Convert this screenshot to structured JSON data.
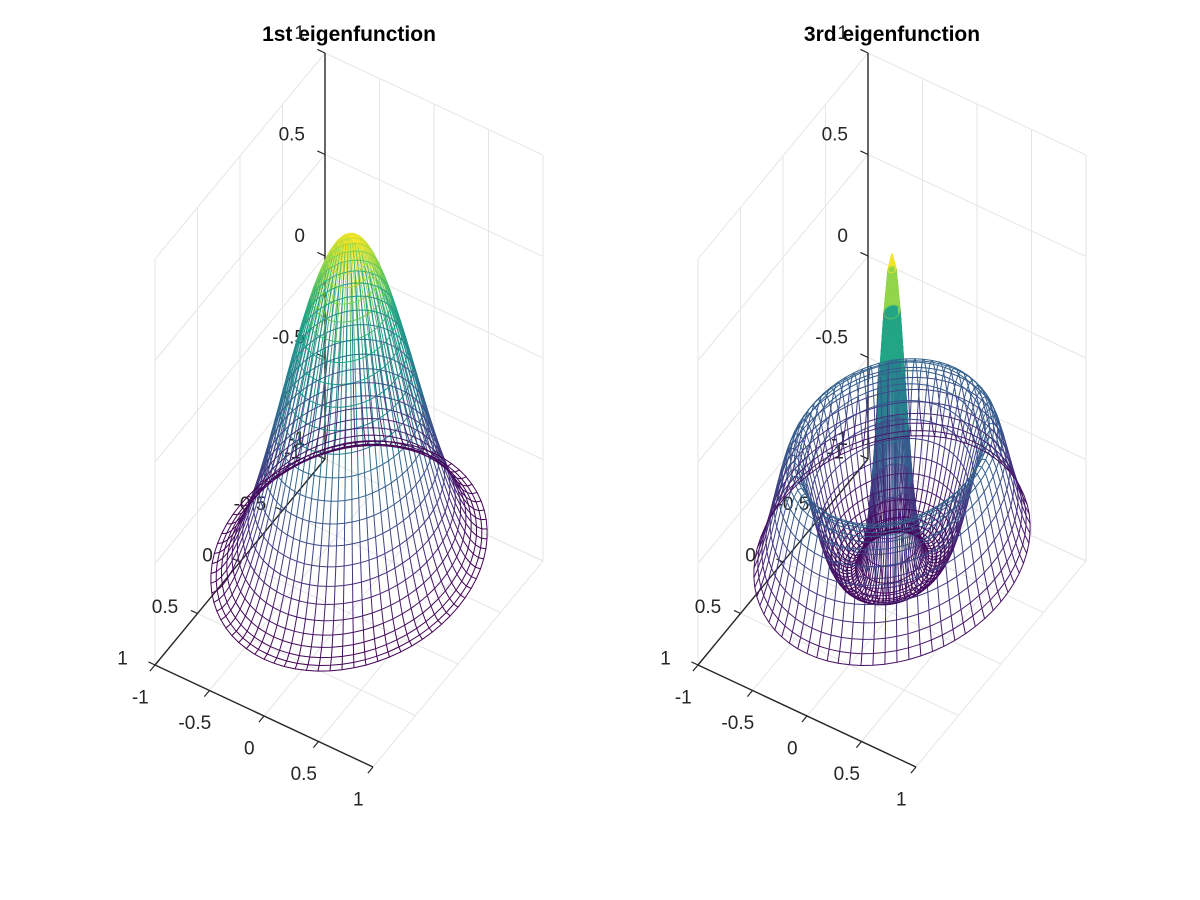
{
  "chart_data": [
    {
      "type": "surface",
      "title": "1st eigenfunction",
      "function": "1st eigenfunction",
      "xlim": [
        -1,
        1
      ],
      "ylim": [
        -1,
        1
      ],
      "zlim": [
        -1,
        1
      ],
      "xticks": [
        -1,
        -0.5,
        0,
        0.5,
        1
      ],
      "yticks": [
        -1,
        -0.5,
        0,
        0.5,
        1
      ],
      "zticks": [
        -1,
        -0.5,
        0,
        0.5,
        1
      ],
      "xtick_labels": [
        "-1",
        "-0.5",
        "0",
        "0.5",
        "1"
      ],
      "ytick_labels": [
        "-1",
        "-0.5",
        "0",
        "0.5",
        "1"
      ],
      "ztick_labels": [
        "-1",
        "-0.5",
        "0",
        "0.5",
        "1"
      ],
      "z_range": [
        -0.72,
        0.85
      ],
      "grid": true,
      "colormap": "viridis"
    },
    {
      "type": "surface",
      "title": "3rd eigenfunction",
      "function": "3rd eigenfunction",
      "xlim": [
        -1,
        1
      ],
      "ylim": [
        -1,
        1
      ],
      "zlim": [
        -1,
        1
      ],
      "xticks": [
        -1,
        -0.5,
        0,
        0.5,
        1
      ],
      "yticks": [
        -1,
        -0.5,
        0,
        0.5,
        1
      ],
      "zticks": [
        -1,
        -0.5,
        0,
        0.5,
        1
      ],
      "xtick_labels": [
        "-1",
        "-0.5",
        "0",
        "0.5",
        "1"
      ],
      "ytick_labels": [
        "-1",
        "-0.5",
        "0",
        "0.5",
        "1"
      ],
      "ztick_labels": [
        "-1",
        "-0.5",
        "0",
        "0.5",
        "1"
      ],
      "z_range": [
        -0.78,
        0.75
      ],
      "grid": true,
      "colormap": "viridis"
    }
  ]
}
